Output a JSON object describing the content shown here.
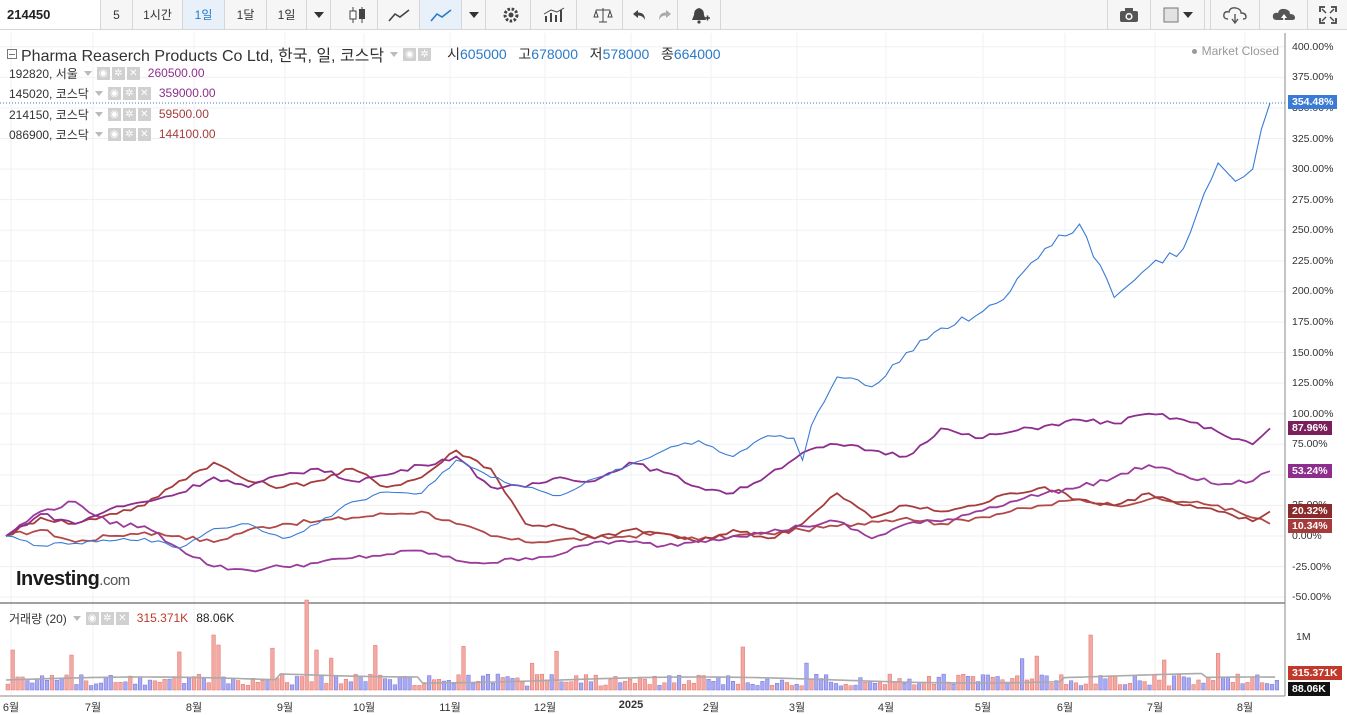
{
  "toolbar": {
    "symbol": "214450",
    "interval": "5",
    "intervals": [
      "1시간",
      "1일",
      "1달",
      "1일"
    ],
    "icons": [
      "candlestick-icon",
      "line-chart-icon",
      "area-chart-icon",
      "dropdown-icon",
      "gear-icon",
      "indicators-icon",
      "scale-icon",
      "undo-icon",
      "redo-icon",
      "alert-bell-icon",
      "camera-icon",
      "color-square-icon",
      "cloud-download-icon",
      "cloud-upload-icon",
      "fullscreen-icon"
    ]
  },
  "main_series": {
    "name": "Pharma Reaserch Products Co Ltd, 한국, 일, 코스닥",
    "open_label": "시",
    "open": "605000",
    "high_label": "고",
    "high": "678000",
    "low_label": "저",
    "low": "578000",
    "close_label": "종",
    "close": "664000",
    "color": "#3a7bd5"
  },
  "market_status": "Market Closed",
  "compare_series": [
    {
      "symbol": "192820, 서울",
      "value": "260500.00",
      "color": "#8e2d8e"
    },
    {
      "symbol": "145020, 코스닥",
      "value": "359000.00",
      "color": "#8e2d8e"
    },
    {
      "symbol": "214150, 코스닥",
      "value": "59500.00",
      "color": "#a63b3b"
    },
    {
      "symbol": "086900, 코스닥",
      "value": "144100.00",
      "color": "#a63b3b"
    }
  ],
  "volume": {
    "label": "거래량 (20)",
    "value1": "315.371K",
    "value2": "88.06K",
    "tick_1m": "1M"
  },
  "badges": [
    "354.48%",
    "87.96%",
    "53.24%",
    "20.32%",
    "10.34%",
    "315.371K",
    "88.06K"
  ],
  "logo": {
    "name": "Investing",
    "suffix": ".com"
  },
  "chart_data": {
    "type": "line",
    "ylabel": "",
    "y_unit": "%",
    "ylim": [
      -50,
      410
    ],
    "y_ticks": [
      "400.00%",
      "375.00%",
      "350.00%",
      "325.00%",
      "300.00%",
      "275.00%",
      "250.00%",
      "225.00%",
      "200.00%",
      "175.00%",
      "150.00%",
      "125.00%",
      "100.00%",
      "75.00%",
      "50.00%",
      "25.00%",
      "0.00%",
      "-25.00%",
      "-50.00%"
    ],
    "x_ticks": [
      "6월",
      "7월",
      "8월",
      "9월",
      "10월",
      "11월",
      "12월",
      "2025",
      "2월",
      "3월",
      "4월",
      "5월",
      "6월",
      "7월",
      "8월"
    ],
    "series": [
      {
        "name": "214450",
        "color": "#3a7bd5",
        "last": "354.48%",
        "x": [
          0,
          4,
          8,
          12,
          16,
          20,
          24,
          28,
          32,
          36,
          40,
          44,
          48,
          52,
          56,
          60,
          64,
          68,
          72,
          76,
          80,
          84,
          88,
          91,
          92,
          93,
          96,
          100,
          104,
          108,
          112,
          116,
          120,
          124,
          128,
          132,
          136,
          140,
          142,
          144,
          146
        ],
        "values": [
          0,
          -8,
          -6,
          -4,
          -2,
          -10,
          6,
          10,
          -2,
          10,
          28,
          36,
          35,
          62,
          48,
          40,
          33,
          47,
          58,
          70,
          78,
          65,
          82,
          80,
          62,
          90,
          130,
          122,
          150,
          170,
          180,
          200,
          235,
          255,
          195,
          220,
          235,
          305,
          290,
          300,
          354
        ]
      },
      {
        "name": "145020",
        "color": "#8e2d8e",
        "last": "87.96%",
        "x": [
          0,
          4,
          8,
          12,
          16,
          20,
          24,
          28,
          32,
          36,
          40,
          44,
          48,
          52,
          56,
          60,
          64,
          68,
          72,
          76,
          80,
          84,
          88,
          92,
          96,
          100,
          104,
          108,
          112,
          116,
          120,
          124,
          128,
          132,
          136,
          140,
          144,
          146
        ],
        "values": [
          0,
          18,
          10,
          22,
          28,
          35,
          48,
          40,
          50,
          55,
          45,
          50,
          58,
          65,
          40,
          40,
          48,
          45,
          60,
          52,
          40,
          35,
          50,
          68,
          75,
          70,
          65,
          88,
          80,
          85,
          90,
          95,
          92,
          100,
          95,
          85,
          75,
          88
        ]
      },
      {
        "name": "192820",
        "color": "#9a3a9a",
        "last": "53.24%",
        "x": [
          0,
          4,
          8,
          12,
          16,
          20,
          24,
          28,
          32,
          36,
          40,
          44,
          48,
          52,
          56,
          60,
          64,
          68,
          72,
          76,
          80,
          84,
          88,
          92,
          96,
          100,
          104,
          108,
          112,
          116,
          120,
          124,
          128,
          132,
          136,
          140,
          144,
          146
        ],
        "values": [
          0,
          20,
          28,
          10,
          8,
          -10,
          -25,
          -28,
          -25,
          -22,
          -18,
          -15,
          -12,
          -20,
          -22,
          -18,
          -15,
          -5,
          -5,
          -8,
          -4,
          0,
          3,
          8,
          12,
          -2,
          10,
          12,
          20,
          28,
          35,
          40,
          48,
          58,
          50,
          42,
          45,
          53
        ]
      },
      {
        "name": "214150",
        "color": "#a63b3b",
        "last": "20.32%",
        "x": [
          0,
          4,
          8,
          12,
          16,
          20,
          24,
          28,
          32,
          36,
          40,
          44,
          48,
          52,
          56,
          60,
          64,
          68,
          72,
          76,
          80,
          84,
          88,
          92,
          96,
          100,
          104,
          108,
          112,
          116,
          120,
          124,
          128,
          132,
          136,
          140,
          144,
          146
        ],
        "values": [
          0,
          15,
          10,
          18,
          25,
          45,
          60,
          45,
          40,
          45,
          55,
          40,
          48,
          70,
          55,
          10,
          8,
          -2,
          5,
          2,
          -5,
          5,
          -2,
          10,
          35,
          15,
          25,
          20,
          25,
          35,
          40,
          30,
          25,
          35,
          25,
          20,
          12,
          20
        ]
      },
      {
        "name": "086900",
        "color": "#b34848",
        "last": "10.34%",
        "x": [
          0,
          4,
          8,
          12,
          16,
          20,
          24,
          28,
          32,
          36,
          40,
          44,
          48,
          52,
          56,
          60,
          64,
          68,
          72,
          76,
          80,
          84,
          88,
          92,
          96,
          100,
          104,
          108,
          112,
          116,
          120,
          124,
          128,
          132,
          136,
          140,
          144,
          146
        ],
        "values": [
          0,
          5,
          -5,
          0,
          3,
          0,
          -5,
          5,
          10,
          12,
          15,
          18,
          20,
          10,
          0,
          -5,
          -3,
          -2,
          0,
          2,
          -3,
          0,
          2,
          5,
          8,
          12,
          15,
          10,
          15,
          20,
          25,
          30,
          25,
          30,
          28,
          25,
          15,
          10
        ]
      }
    ]
  }
}
